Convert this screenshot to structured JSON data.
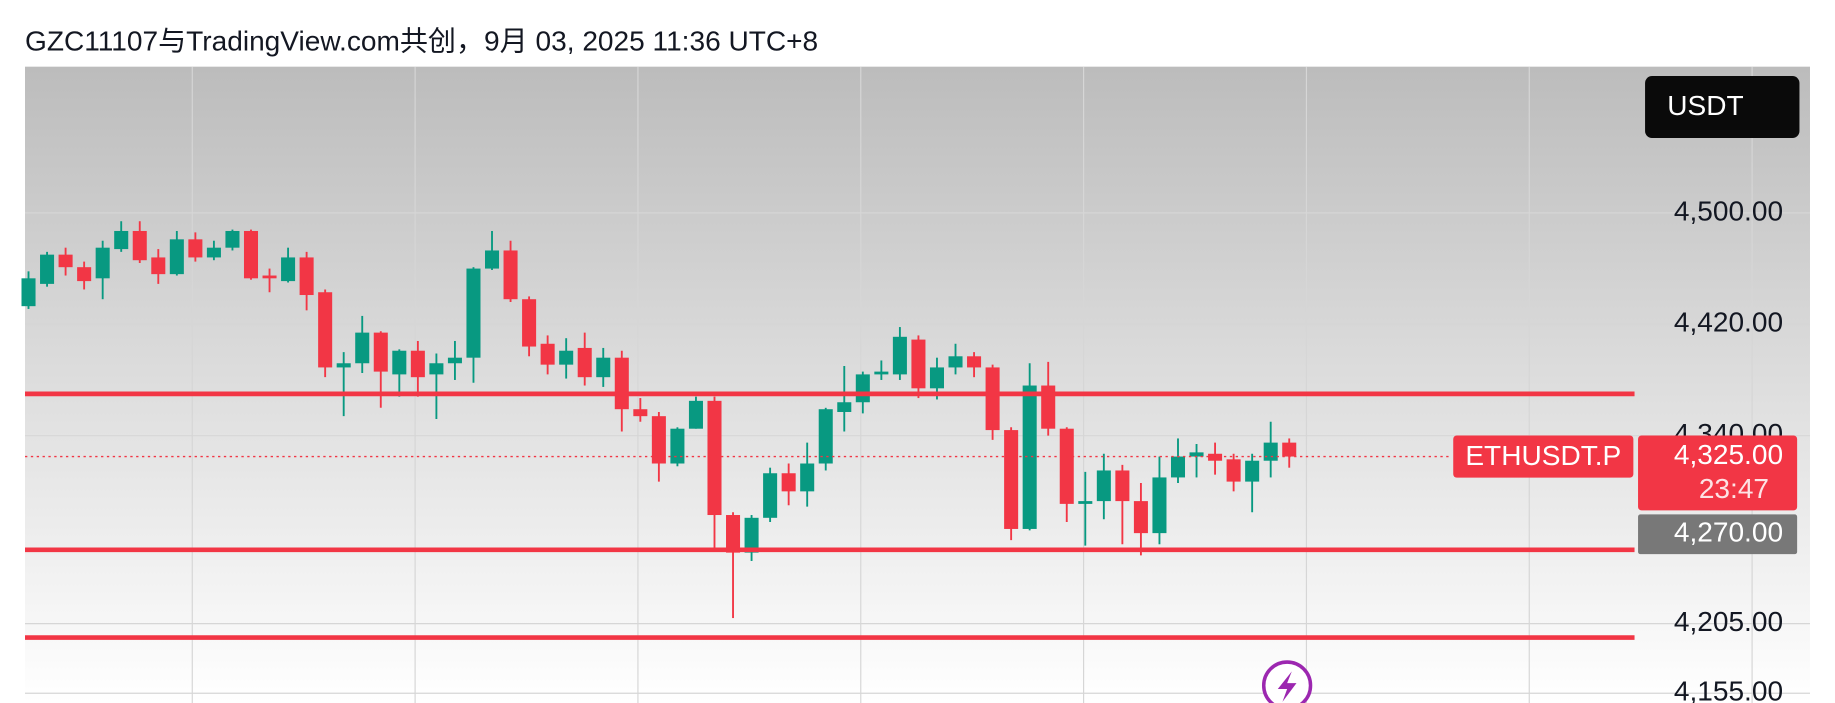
{
  "chart_data": {
    "type": "candlestick",
    "title": "GZC11107与TradingView.com共创，9月 03, 2025 11:36 UTC+8",
    "currency_button": "USDT",
    "symbol": "ETHUSDT.P",
    "last_price": {
      "value": 4325,
      "label": "4,325.00"
    },
    "countdown": "23:47",
    "marker": {
      "value": 4270,
      "label": "4,270.00"
    },
    "levels": [
      4370,
      4258,
      4195
    ],
    "level_color": "#f23645",
    "up_color": "#089981",
    "down_color": "#f23645",
    "ylim": [
      4148,
      4605
    ],
    "yticks": [
      {
        "value": 4500,
        "label": "4,500.00"
      },
      {
        "value": 4420,
        "label": "4,420.00"
      },
      {
        "value": 4340,
        "label": "4,340.00"
      },
      {
        "value": 4205,
        "label": "4,205.00"
      },
      {
        "value": 4155,
        "label": "4,155.00"
      }
    ],
    "grid": true,
    "open": [
      4433,
      4449,
      4470,
      4461,
      4453,
      4474,
      4487,
      4468,
      4456,
      4481,
      4468,
      4475,
      4487,
      4455,
      4451,
      4468,
      4443,
      4389,
      4392,
      4414,
      4384,
      4401,
      4384,
      4392,
      4396,
      4460,
      4473,
      4438,
      4406,
      4391,
      4403,
      4382,
      4396,
      4359,
      4354,
      4320,
      4345,
      4365,
      4283,
      4256,
      4281,
      4313,
      4300,
      4320,
      4357,
      4364,
      4384,
      4384,
      4409,
      4374,
      4389,
      4397,
      4389,
      4344,
      4273,
      4376,
      4345,
      4291,
      4293,
      4315,
      4293,
      4270,
      4310,
      4325,
      4327,
      4323,
      4307,
      4322,
      4335
    ],
    "high": [
      4458,
      4472,
      4475,
      4465,
      4480,
      4494,
      4494,
      4474,
      4487,
      4486,
      4480,
      4488,
      4488,
      4460,
      4475,
      4472,
      4445,
      4400,
      4426,
      4415,
      4402,
      4408,
      4399,
      4408,
      4461,
      4487,
      4480,
      4440,
      4412,
      4410,
      4414,
      4403,
      4401,
      4367,
      4357,
      4346,
      4368,
      4368,
      4285,
      4283,
      4317,
      4320,
      4335,
      4360,
      4390,
      4386,
      4394,
      4418,
      4412,
      4396,
      4406,
      4400,
      4391,
      4346,
      4392,
      4393,
      4346,
      4314,
      4327,
      4319,
      4306,
      4325,
      4338,
      4334,
      4335,
      4327,
      4327,
      4350,
      4338
    ],
    "low": [
      4431,
      4447,
      4455,
      4445,
      4438,
      4472,
      4464,
      4449,
      4455,
      4465,
      4466,
      4473,
      4452,
      4443,
      4450,
      4430,
      4382,
      4354,
      4385,
      4360,
      4368,
      4368,
      4352,
      4380,
      4378,
      4459,
      4436,
      4397,
      4384,
      4381,
      4376,
      4375,
      4343,
      4350,
      4307,
      4318,
      4345,
      4258,
      4209,
      4250,
      4278,
      4290,
      4289,
      4315,
      4343,
      4356,
      4380,
      4380,
      4367,
      4366,
      4384,
      4382,
      4337,
      4265,
      4272,
      4340,
      4278,
      4261,
      4280,
      4262,
      4254,
      4262,
      4306,
      4310,
      4312,
      4300,
      4285,
      4310,
      4317
    ],
    "close": [
      4453,
      4470,
      4461,
      4451,
      4475,
      4487,
      4466,
      4456,
      4481,
      4468,
      4475,
      4487,
      4453,
      4453,
      4468,
      4441,
      4389,
      4392,
      4414,
      4386,
      4401,
      4382,
      4392,
      4396,
      4460,
      4473,
      4438,
      4404,
      4391,
      4401,
      4382,
      4396,
      4359,
      4354,
      4320,
      4345,
      4365,
      4283,
      4256,
      4281,
      4313,
      4300,
      4320,
      4359,
      4364,
      4384,
      4386,
      4411,
      4374,
      4389,
      4397,
      4389,
      4344,
      4273,
      4376,
      4345,
      4291,
      4293,
      4315,
      4293,
      4270,
      4310,
      4325,
      4328,
      4322,
      4307,
      4322,
      4335,
      4325
    ]
  }
}
